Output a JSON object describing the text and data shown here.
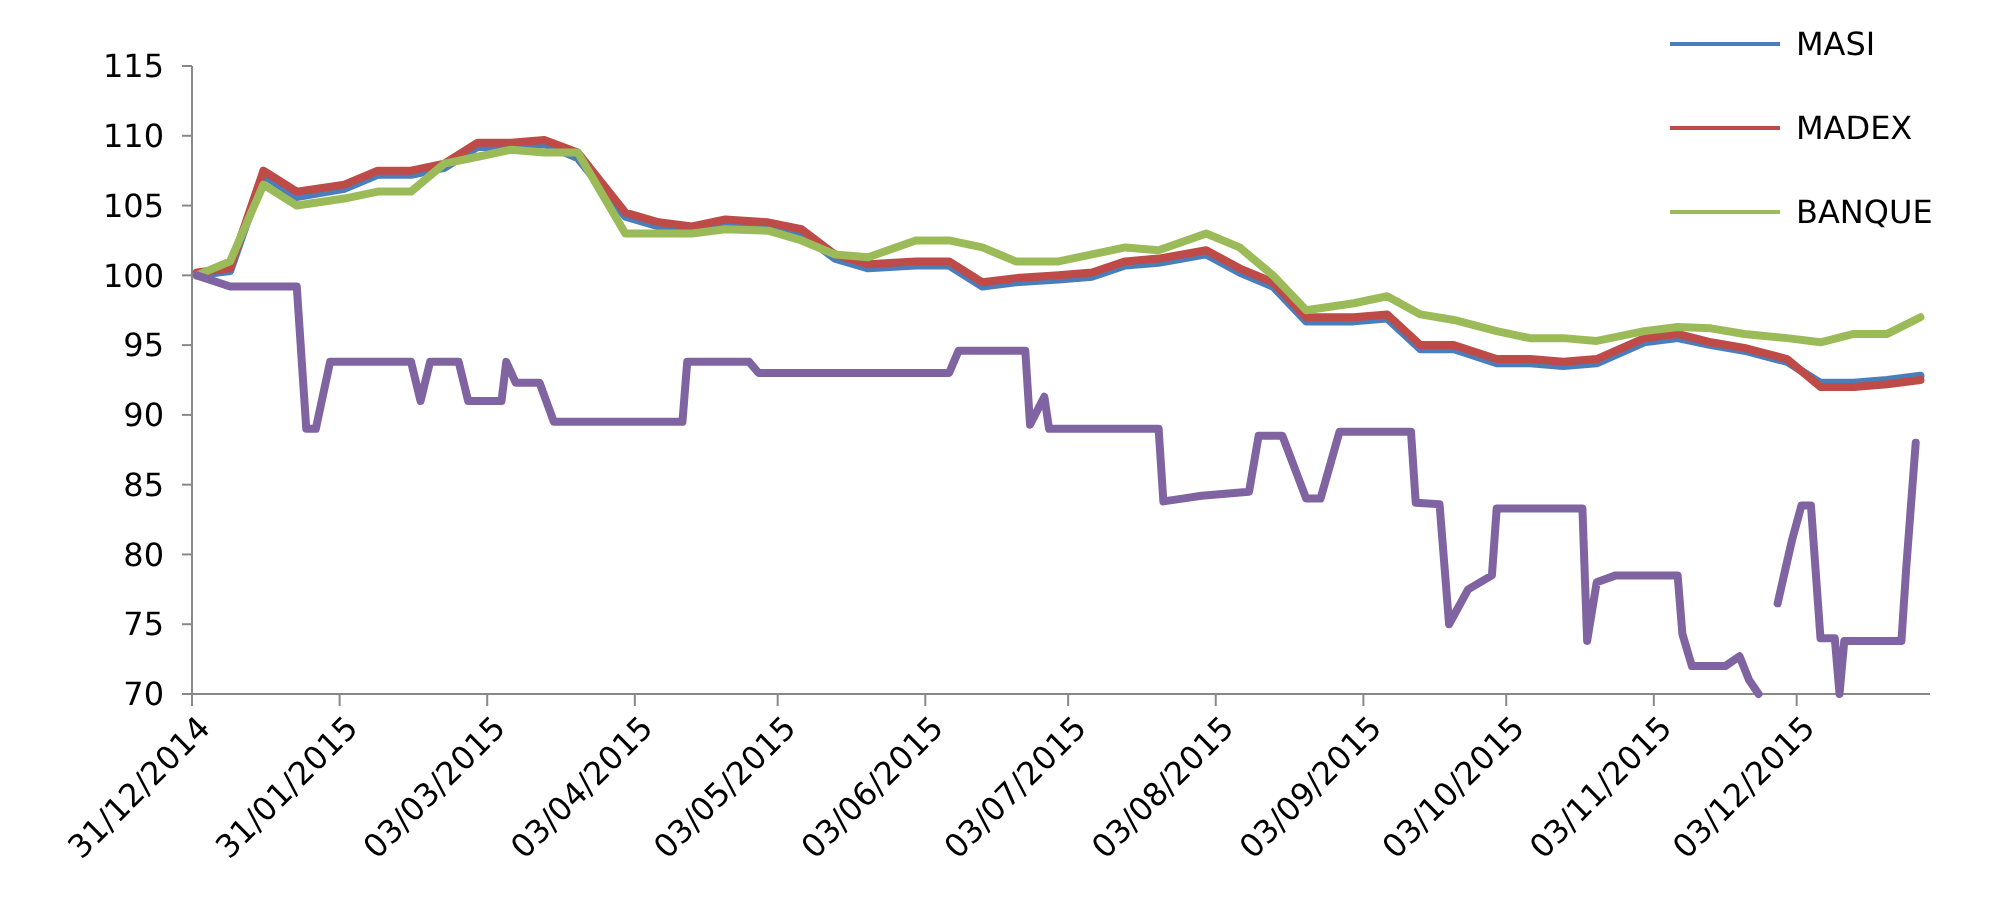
{
  "chart_data": {
    "type": "line",
    "x": [
      "2015-01-01",
      "2015-01-08",
      "2015-01-15",
      "2015-01-22",
      "2015-02-01",
      "2015-02-08",
      "2015-02-15",
      "2015-02-22",
      "2015-03-01",
      "2015-03-08",
      "2015-03-15",
      "2015-03-22",
      "2015-04-01",
      "2015-04-08",
      "2015-04-15",
      "2015-04-22",
      "2015-05-01",
      "2015-05-08",
      "2015-05-15",
      "2015-05-22",
      "2015-06-01",
      "2015-06-08",
      "2015-06-15",
      "2015-06-22",
      "2015-07-01",
      "2015-07-08",
      "2015-07-15",
      "2015-07-22",
      "2015-08-01",
      "2015-08-08",
      "2015-08-15",
      "2015-08-22",
      "2015-09-01",
      "2015-09-08",
      "2015-09-15",
      "2015-09-22",
      "2015-10-01",
      "2015-10-08",
      "2015-10-15",
      "2015-10-22",
      "2015-11-01",
      "2015-11-08",
      "2015-11-15",
      "2015-11-22",
      "2015-12-01",
      "2015-12-08",
      "2015-12-15",
      "2015-12-22",
      "2015-12-29"
    ],
    "series": [
      {
        "name": "MASI",
        "color": "#4a7ebb",
        "values": [
          100,
          100.3,
          107.2,
          105.6,
          106.2,
          107.2,
          107.2,
          107.7,
          109.2,
          109.2,
          109.4,
          108.4,
          104.2,
          103.5,
          103.2,
          103.7,
          103.5,
          103,
          101.2,
          100.5,
          100.7,
          100.7,
          99.2,
          99.5,
          99.7,
          99.9,
          100.7,
          100.9,
          101.5,
          100.2,
          99.2,
          96.7,
          96.7,
          96.9,
          94.7,
          94.7,
          93.7,
          93.7,
          93.5,
          93.7,
          95.2,
          95.5,
          95,
          94.6,
          93.8,
          92.3,
          92.3,
          92.5,
          92.8
        ]
      },
      {
        "name": "MADEX",
        "color": "#be4b48",
        "values": [
          100.2,
          100.5,
          107.5,
          106,
          106.5,
          107.5,
          107.5,
          108,
          109.5,
          109.5,
          109.7,
          108.8,
          104.5,
          103.8,
          103.5,
          104,
          103.8,
          103.3,
          101.5,
          100.8,
          101,
          101,
          99.5,
          99.8,
          100,
          100.2,
          101,
          101.2,
          101.8,
          100.5,
          99.5,
          97,
          97,
          97.2,
          95,
          95,
          94,
          94,
          93.8,
          94,
          95.5,
          95.8,
          95.2,
          94.8,
          94,
          92,
          92,
          92.2,
          92.5
        ]
      },
      {
        "name": "BANQUE",
        "color": "#9bbb59",
        "values": [
          100,
          101,
          106.5,
          105,
          105.5,
          106,
          106,
          108,
          108.5,
          109,
          108.8,
          108.8,
          103,
          103,
          103,
          103.3,
          103.2,
          102.5,
          101.5,
          101.3,
          102.5,
          102.5,
          102,
          101,
          101,
          101.5,
          102,
          101.8,
          103,
          102,
          100,
          97.5,
          98,
          98.5,
          97.2,
          96.8,
          96,
          95.5,
          95.5,
          95.3,
          96,
          96.3,
          96.2,
          95.8,
          95.5,
          95.2,
          95.8,
          95.8,
          97
        ]
      },
      {
        "color": "#8064a2",
        "x": [
          "2015-01-01",
          "2015-01-08",
          "2015-01-22",
          "2015-01-24",
          "2015-01-26",
          "2015-01-29",
          "2015-02-15",
          "2015-02-17",
          "2015-02-19",
          "2015-02-25",
          "2015-02-27",
          "2015-03-06",
          "2015-03-07",
          "2015-03-09",
          "2015-03-14",
          "2015-03-17",
          "2015-04-13",
          "2015-04-14",
          "2015-04-27",
          "2015-04-29",
          "2015-06-08",
          "2015-06-10",
          "2015-06-24",
          "2015-06-25",
          "2015-06-28",
          "2015-06-29",
          "2015-07-22",
          "2015-07-23",
          "2015-07-27",
          "2015-07-31",
          "2015-08-10",
          "2015-08-12",
          "2015-08-17",
          "2015-08-22",
          "2015-08-25",
          "2015-08-29",
          "2015-09-13",
          "2015-09-14",
          "2015-09-19",
          "2015-09-21",
          "2015-09-25",
          "2015-09-30",
          "2015-10-01",
          "2015-10-19",
          "2015-10-20",
          "2015-10-22",
          "2015-10-26",
          "2015-11-08",
          "2015-11-09",
          "2015-11-11",
          "2015-11-18",
          "2015-11-21",
          "2015-11-23",
          "2015-11-25",
          "2015-11-26",
          "2015-11-28",
          "2015-11-29",
          "2015-12-02",
          "2015-12-04",
          "2015-12-06",
          "2015-12-08",
          "2015-12-11",
          "2015-12-12",
          "2015-12-13",
          "2015-12-25",
          "2015-12-26",
          "2015-12-28"
        ],
        "values": [
          100,
          99.2,
          99.2,
          89,
          89,
          93.8,
          93.8,
          91,
          93.8,
          93.8,
          91,
          91,
          93.8,
          92.3,
          92.3,
          89.5,
          89.5,
          93.8,
          93.8,
          93,
          93,
          94.6,
          94.6,
          89.3,
          91.3,
          89,
          89,
          83.8,
          84,
          84.2,
          84.5,
          88.5,
          88.5,
          84,
          84,
          88.8,
          88.8,
          83.7,
          83.6,
          75,
          77.5,
          78.5,
          83.3,
          83.3,
          73.8,
          78,
          78.5,
          78.5,
          74.3,
          72,
          72,
          72.7,
          71,
          70,
          null,
          null,
          76.5,
          81,
          83.5,
          83.5,
          74,
          74,
          70,
          73.8,
          73.8,
          79,
          88
        ]
      }
    ],
    "xlim": [
      "2014-12-31",
      "2015-12-31"
    ],
    "xticks": [
      {
        "value": "2014-12-31",
        "label": "31/12/2014"
      },
      {
        "value": "2015-01-31",
        "label": "31/01/2015"
      },
      {
        "value": "2015-03-03",
        "label": "03/03/2015"
      },
      {
        "value": "2015-04-03",
        "label": "03/04/2015"
      },
      {
        "value": "2015-05-03",
        "label": "03/05/2015"
      },
      {
        "value": "2015-06-03",
        "label": "03/06/2015"
      },
      {
        "value": "2015-07-03",
        "label": "03/07/2015"
      },
      {
        "value": "2015-08-03",
        "label": "03/08/2015"
      },
      {
        "value": "2015-09-03",
        "label": "03/09/2015"
      },
      {
        "value": "2015-10-03",
        "label": "03/10/2015"
      },
      {
        "value": "2015-11-03",
        "label": "03/11/2015"
      },
      {
        "value": "2015-12-03",
        "label": "03/12/2015"
      }
    ],
    "ylim": [
      70,
      115
    ],
    "yticks": [
      70,
      75,
      80,
      85,
      90,
      95,
      100,
      105,
      110,
      115
    ],
    "legend": "top right"
  }
}
